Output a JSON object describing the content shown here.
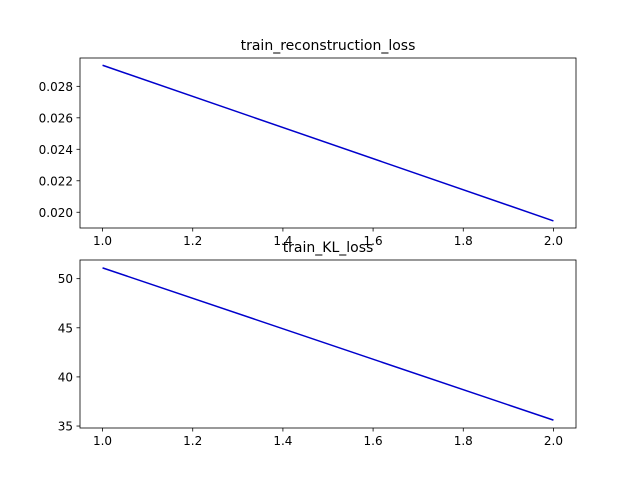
{
  "chart_data": [
    {
      "type": "line",
      "title": "train_reconstruction_loss",
      "xlabel": "",
      "ylabel": "",
      "x": [
        1.0,
        2.0
      ],
      "series": [
        {
          "values": [
            0.02934,
            0.01945
          ],
          "color": "#0000cc"
        }
      ],
      "xlim": [
        0.95,
        2.05
      ],
      "ylim": [
        0.019,
        0.0298
      ],
      "xticks": [
        1.0,
        1.2,
        1.4,
        1.6,
        1.8,
        2.0
      ],
      "xtick_labels": [
        "1.0",
        "1.2",
        "1.4",
        "1.6",
        "1.8",
        "2.0"
      ],
      "yticks": [
        0.02,
        0.022,
        0.024,
        0.026,
        0.028
      ],
      "ytick_labels": [
        "0.020",
        "0.022",
        "0.024",
        "0.026",
        "0.028"
      ],
      "grid": false,
      "legend": "none"
    },
    {
      "type": "line",
      "title": "train_KL_loss",
      "xlabel": "",
      "ylabel": "",
      "x": [
        1.0,
        2.0
      ],
      "series": [
        {
          "values": [
            51.1,
            35.6
          ],
          "color": "#0000cc"
        }
      ],
      "xlim": [
        0.95,
        2.05
      ],
      "ylim": [
        34.8,
        51.9
      ],
      "xticks": [
        1.0,
        1.2,
        1.4,
        1.6,
        1.8,
        2.0
      ],
      "xtick_labels": [
        "1.0",
        "1.2",
        "1.4",
        "1.6",
        "1.8",
        "2.0"
      ],
      "yticks": [
        35,
        40,
        45,
        50
      ],
      "ytick_labels": [
        "35",
        "40",
        "45",
        "50"
      ],
      "grid": false,
      "legend": "none"
    }
  ]
}
